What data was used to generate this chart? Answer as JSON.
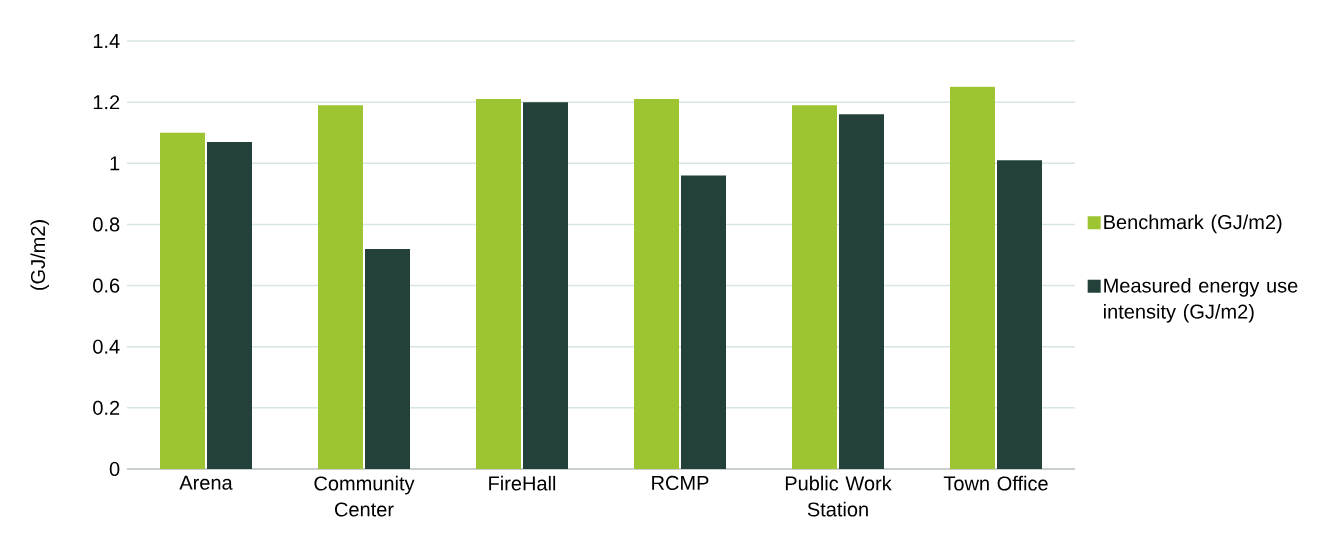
{
  "chart_data": {
    "type": "bar",
    "ylabel": "(GJ/m2)",
    "categories": [
      "Arena",
      "Community Center",
      "FireHall",
      "RCMP",
      "Public Work Station",
      "Town Office"
    ],
    "series": [
      {
        "name": "Benchmark (GJ/m2)",
        "color": "#9dc431",
        "values": [
          1.1,
          1.19,
          1.21,
          1.21,
          1.19,
          1.25
        ]
      },
      {
        "name": "Measured energy use intensity (GJ/m2)",
        "color": "#23413a",
        "values": [
          1.07,
          0.72,
          1.2,
          0.96,
          1.16,
          1.01
        ]
      }
    ],
    "ylim": [
      0,
      1.4
    ],
    "yticks": [
      0,
      0.2,
      0.4,
      0.6,
      0.8,
      1,
      1.2,
      1.4
    ],
    "grid": "y",
    "legend": "right"
  }
}
